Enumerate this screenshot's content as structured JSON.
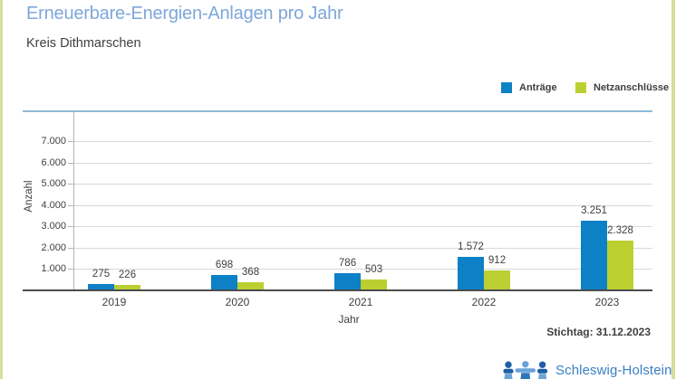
{
  "header": {
    "title": "Erneuerbare-Energien-Anlagen pro Jahr",
    "subtitle": "Kreis Dithmarschen"
  },
  "legend": [
    {
      "label": "Anträge",
      "color": "#0e81c6"
    },
    {
      "label": "Netzanschlüsse",
      "color": "#bccf31"
    }
  ],
  "chart_data": {
    "type": "bar",
    "title": "Erneuerbare-Energien-Anlagen pro Jahr",
    "subtitle": "Kreis Dithmarschen",
    "categories": [
      "2019",
      "2020",
      "2021",
      "2022",
      "2023"
    ],
    "series": [
      {
        "name": "Anträge",
        "color": "#0e81c6",
        "values": [
          275,
          698,
          786,
          1572,
          3251
        ],
        "labels": [
          "275",
          "698",
          "786",
          "1.572",
          "3.251"
        ]
      },
      {
        "name": "Netzanschlüsse",
        "color": "#bccf31",
        "values": [
          226,
          368,
          503,
          912,
          2328
        ],
        "labels": [
          "226",
          "368",
          "503",
          "912",
          "2.328"
        ]
      }
    ],
    "xlabel": "Jahr",
    "ylabel": "Anzahl",
    "ylim": [
      0,
      8400
    ],
    "grid": true,
    "legend_position": "top-right",
    "yticks": [
      {
        "value": 1000,
        "label": "1.000"
      },
      {
        "value": 2000,
        "label": "2.000"
      },
      {
        "value": 3000,
        "label": "3.000"
      },
      {
        "value": 4000,
        "label": "4.000"
      },
      {
        "value": 5000,
        "label": "5.000"
      },
      {
        "value": 6000,
        "label": "6.000"
      },
      {
        "value": 7000,
        "label": "7.000"
      }
    ]
  },
  "footer": {
    "stichtag": "Stichtag: 31.12.2023",
    "logo_text": "Schleswig-Holstein"
  }
}
